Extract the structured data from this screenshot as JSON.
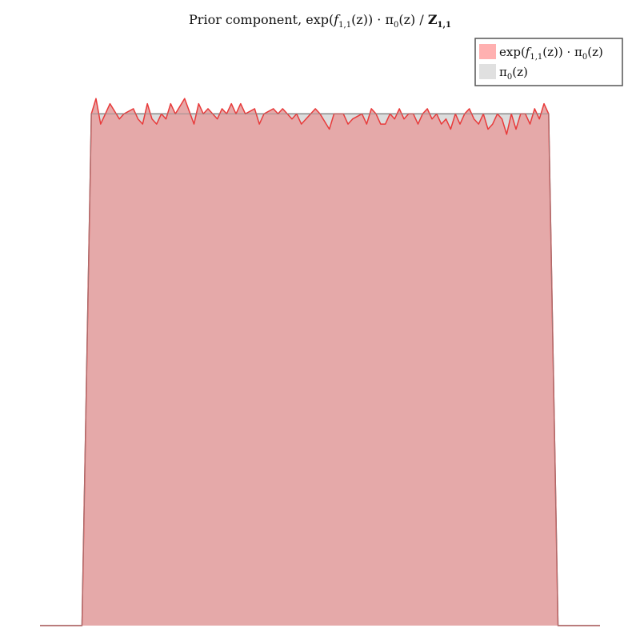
{
  "chart_data": {
    "type": "area",
    "title": {
      "prefix": "Prior component, exp(",
      "f": "f",
      "f_sub": "1,1",
      "middle": "(z)) · π",
      "pi_sub": "0",
      "suffix": "(z) / ",
      "Z": "Z",
      "Z_sub": "1,1"
    },
    "legend": {
      "placement": "top-right",
      "entries": [
        {
          "parts": [
            "exp(",
            "f",
            "1,1",
            "(z)) · π",
            "0",
            "(z)"
          ],
          "color": "#ffb0b0"
        },
        {
          "parts": [
            "π",
            "0",
            "(z)"
          ],
          "color": "#e0e0e0"
        }
      ]
    },
    "colors": {
      "component_fill": "#e5a9a9",
      "component_line": "#e83a3a",
      "prior_fill": "#dcdcdc",
      "prior_line": "#8a8a8a",
      "legend_component": "#ffb0b0",
      "legend_prior": "#e0e0e0"
    },
    "xlim": [
      -0.1,
      1.1
    ],
    "ylim": [
      0,
      1.16
    ],
    "grid": false,
    "series": [
      {
        "name": "π0(z)",
        "x": [
          -0.1,
          -0.01,
          0.01,
          0.99,
          1.01,
          1.1
        ],
        "values": [
          0,
          0,
          1.0,
          1.0,
          0,
          0
        ]
      },
      {
        "name": "exp(f1,1(z)) · π0(z)",
        "x": [
          -0.1,
          -0.01,
          0.01,
          0.02,
          0.03,
          0.04,
          0.05,
          0.07,
          0.08,
          0.1,
          0.11,
          0.12,
          0.13,
          0.14,
          0.15,
          0.16,
          0.17,
          0.18,
          0.19,
          0.21,
          0.23,
          0.24,
          0.25,
          0.26,
          0.27,
          0.28,
          0.29,
          0.3,
          0.31,
          0.32,
          0.33,
          0.34,
          0.36,
          0.37,
          0.38,
          0.4,
          0.41,
          0.42,
          0.44,
          0.45,
          0.46,
          0.47,
          0.49,
          0.5,
          0.52,
          0.53,
          0.55,
          0.56,
          0.57,
          0.59,
          0.6,
          0.61,
          0.62,
          0.63,
          0.64,
          0.65,
          0.66,
          0.67,
          0.68,
          0.69,
          0.7,
          0.71,
          0.72,
          0.73,
          0.74,
          0.75,
          0.76,
          0.77,
          0.78,
          0.79,
          0.8,
          0.81,
          0.82,
          0.83,
          0.84,
          0.85,
          0.86,
          0.87,
          0.88,
          0.89,
          0.9,
          0.91,
          0.92,
          0.93,
          0.94,
          0.95,
          0.96,
          0.97,
          0.98,
          0.99,
          1.01,
          1.1
        ],
        "values": [
          0,
          0,
          1.0,
          1.03,
          0.98,
          1.0,
          1.02,
          0.99,
          1.0,
          1.01,
          0.99,
          0.98,
          1.02,
          0.99,
          0.98,
          1.0,
          0.99,
          1.02,
          1.0,
          1.03,
          0.98,
          1.02,
          1.0,
          1.01,
          1.0,
          0.99,
          1.01,
          1.0,
          1.02,
          1.0,
          1.02,
          1.0,
          1.01,
          0.98,
          1.0,
          1.01,
          1.0,
          1.01,
          0.99,
          1.0,
          0.98,
          0.99,
          1.01,
          1.0,
          0.97,
          1.0,
          1.0,
          0.98,
          0.99,
          1.0,
          0.98,
          1.01,
          1.0,
          0.98,
          0.98,
          1.0,
          0.99,
          1.01,
          0.99,
          1.0,
          1.0,
          0.98,
          1.0,
          1.01,
          0.99,
          1.0,
          0.98,
          0.99,
          0.97,
          1.0,
          0.98,
          1.0,
          1.01,
          0.99,
          0.98,
          1.0,
          0.97,
          0.98,
          1.0,
          0.99,
          0.96,
          1.0,
          0.97,
          1.0,
          1.0,
          0.98,
          1.01,
          0.99,
          1.02,
          1.0,
          0,
          0
        ]
      }
    ]
  }
}
